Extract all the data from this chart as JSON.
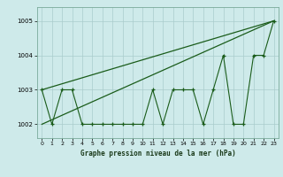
{
  "x": [
    0,
    1,
    2,
    3,
    4,
    5,
    6,
    7,
    8,
    9,
    10,
    11,
    12,
    13,
    14,
    15,
    16,
    17,
    18,
    19,
    20,
    21,
    22,
    23
  ],
  "y_main": [
    1003,
    1002,
    1003,
    1003,
    1002,
    1002,
    1002,
    1002,
    1002,
    1002,
    1002,
    1003,
    1002,
    1003,
    1003,
    1003,
    1002,
    1003,
    1004,
    1002,
    1002,
    1004,
    1004,
    1005
  ],
  "line1_x": [
    0,
    23
  ],
  "line1_y": [
    1002.0,
    1005.0
  ],
  "line2_x": [
    0,
    23
  ],
  "line2_y": [
    1003.0,
    1005.0
  ],
  "bg_color": "#ceeaea",
  "grid_color": "#aacccc",
  "line_color": "#1a5c1a",
  "xlabel": "Graphe pression niveau de la mer (hPa)",
  "ylim": [
    1001.6,
    1005.4
  ],
  "xlim": [
    -0.5,
    23.5
  ],
  "yticks": [
    1002,
    1003,
    1004,
    1005
  ],
  "xticks": [
    0,
    1,
    2,
    3,
    4,
    5,
    6,
    7,
    8,
    9,
    10,
    11,
    12,
    13,
    14,
    15,
    16,
    17,
    18,
    19,
    20,
    21,
    22,
    23
  ],
  "xtick_labels": [
    "0",
    "1",
    "2",
    "3",
    "4",
    "5",
    "6",
    "7",
    "8",
    "9",
    "10",
    "11",
    "12",
    "13",
    "14",
    "15",
    "16",
    "17",
    "18",
    "19",
    "20",
    "21",
    "22",
    "23"
  ]
}
